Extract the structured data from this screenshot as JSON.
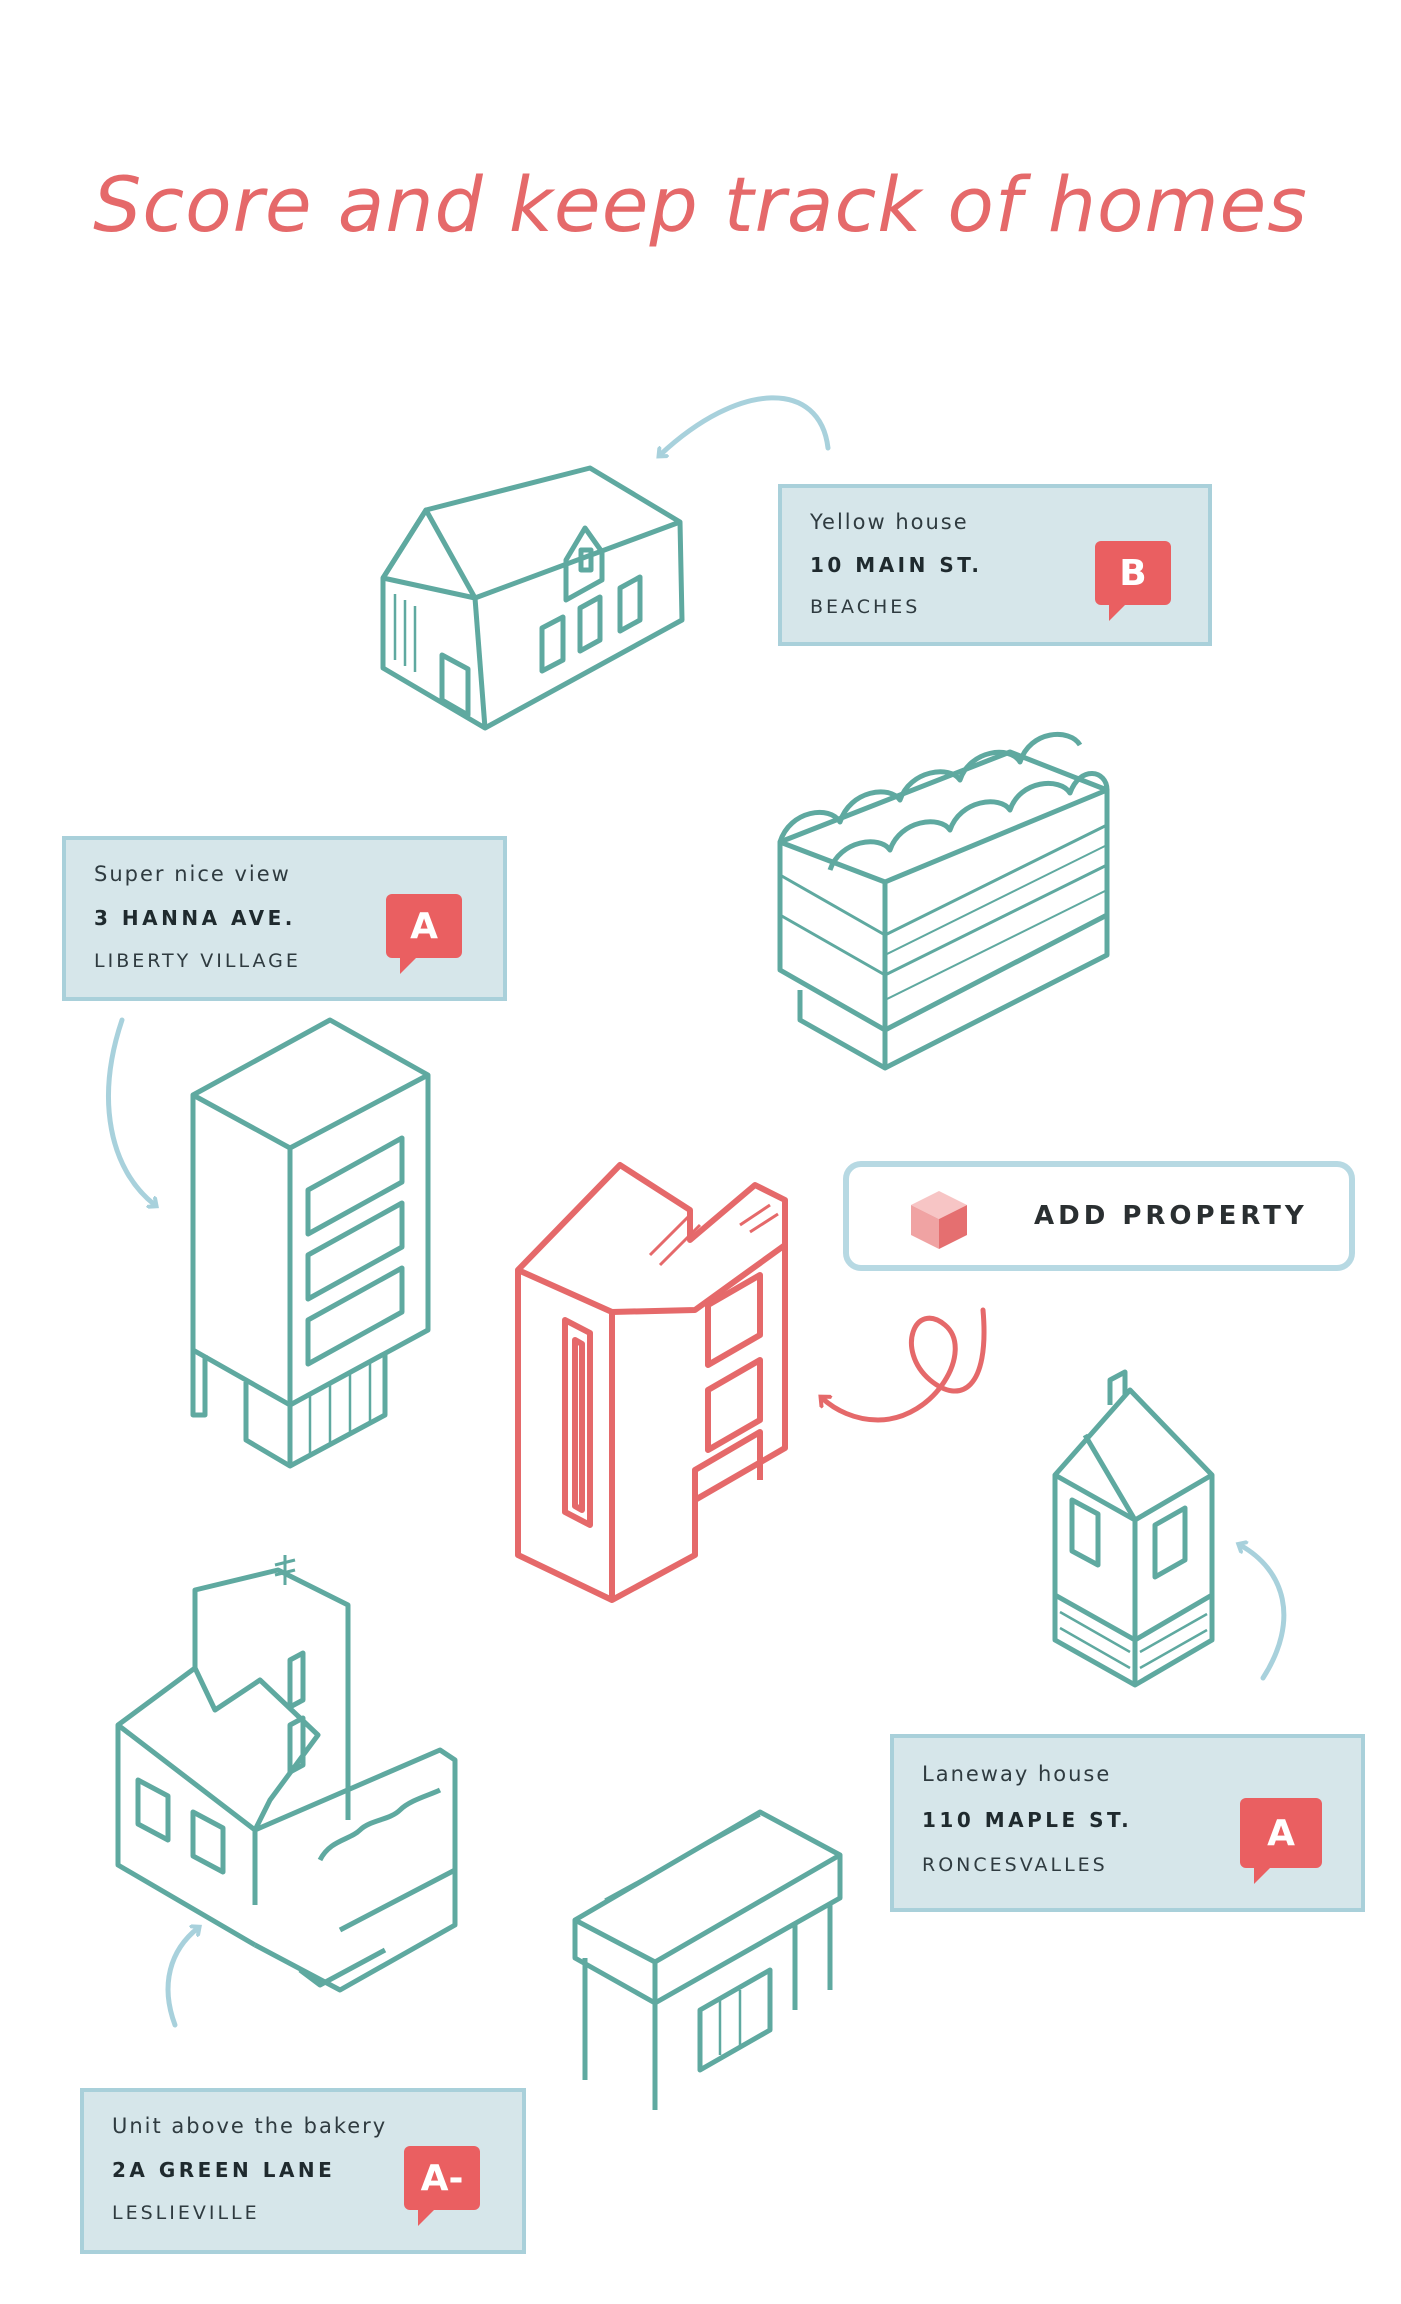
{
  "page": {
    "title": "Score and keep track of homes",
    "colors": {
      "accent": "#e5696a",
      "teal": "#5fa9a0",
      "card_bg": "#d6e6ea",
      "card_border": "#a9d0da",
      "badge": "#ea5f61"
    }
  },
  "cards": [
    {
      "label": "Yellow house",
      "address": "10 MAIN ST.",
      "area": "BEACHES",
      "grade": "B"
    },
    {
      "label": "Super nice view",
      "address": "3 HANNA AVE.",
      "area": "LIBERTY VILLAGE",
      "grade": "A"
    },
    {
      "label": "Laneway house",
      "address": "110 MAPLE ST.",
      "area": "RONCESVALLES",
      "grade": "A"
    },
    {
      "label": "Unit above the bakery",
      "address": "2A GREEN LANE",
      "area": "LESLIEVILLE",
      "grade": "A-"
    }
  ],
  "add_property": {
    "label": "ADD PROPERTY",
    "icon": "cube-icon"
  },
  "icons": {
    "houses": [
      "gable-house-icon",
      "vaulted-roof-building-icon",
      "tower-building-icon",
      "featured-townhouse-icon",
      "laneway-house-icon",
      "victorian-house-icon",
      "modernist-pavilion-icon"
    ],
    "arrows": [
      "curved-arrow-icon",
      "loop-arrow-icon"
    ]
  }
}
